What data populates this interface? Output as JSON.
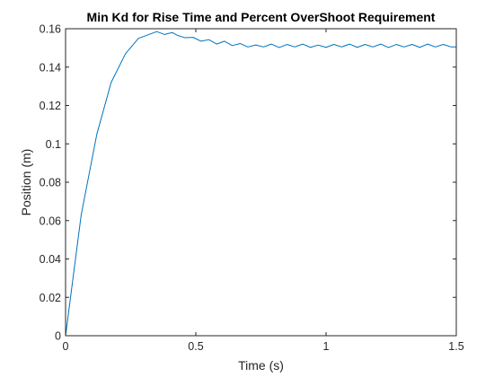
{
  "chart_data": {
    "type": "line",
    "title": "Min Kd for Rise Time and Percent OverShoot Requirement",
    "xlabel": "Time (s)",
    "ylabel": "Position (m)",
    "xlim": [
      0,
      1.5
    ],
    "ylim": [
      0,
      0.16
    ],
    "xticks": [
      0,
      0.5,
      1,
      1.5
    ],
    "xtick_labels": [
      "0",
      "0.5",
      "1",
      "1.5"
    ],
    "yticks": [
      0,
      0.02,
      0.04,
      0.06,
      0.08,
      0.1,
      0.12,
      0.14,
      0.16
    ],
    "ytick_labels": [
      "0",
      "0.02",
      "0.04",
      "0.06",
      "0.08",
      "0.1",
      "0.12",
      "0.14",
      "0.16"
    ],
    "grid": false,
    "series": [
      {
        "color": "#0072BD",
        "x": [
          0,
          0.06,
          0.12,
          0.175,
          0.23,
          0.28,
          0.32,
          0.35,
          0.38,
          0.41,
          0.43,
          0.46,
          0.49,
          0.52,
          0.55,
          0.58,
          0.61,
          0.64,
          0.67,
          0.7,
          0.73,
          0.76,
          0.79,
          0.82,
          0.85,
          0.88,
          0.91,
          0.94,
          0.97,
          1.0,
          1.03,
          1.06,
          1.09,
          1.12,
          1.15,
          1.18,
          1.21,
          1.24,
          1.27,
          1.3,
          1.33,
          1.36,
          1.39,
          1.42,
          1.45,
          1.48,
          1.5
        ],
        "y": [
          0,
          0.063,
          0.105,
          0.132,
          0.147,
          0.155,
          0.157,
          0.1585,
          0.157,
          0.158,
          0.1565,
          0.1553,
          0.1555,
          0.1535,
          0.1543,
          0.152,
          0.1535,
          0.1512,
          0.1523,
          0.1505,
          0.1515,
          0.1505,
          0.152,
          0.1502,
          0.1518,
          0.1505,
          0.152,
          0.1503,
          0.1515,
          0.1503,
          0.1518,
          0.1505,
          0.152,
          0.1503,
          0.1518,
          0.1505,
          0.152,
          0.1502,
          0.1518,
          0.1505,
          0.1518,
          0.1503,
          0.152,
          0.1505,
          0.1518,
          0.1505,
          0.1505
        ]
      }
    ]
  }
}
